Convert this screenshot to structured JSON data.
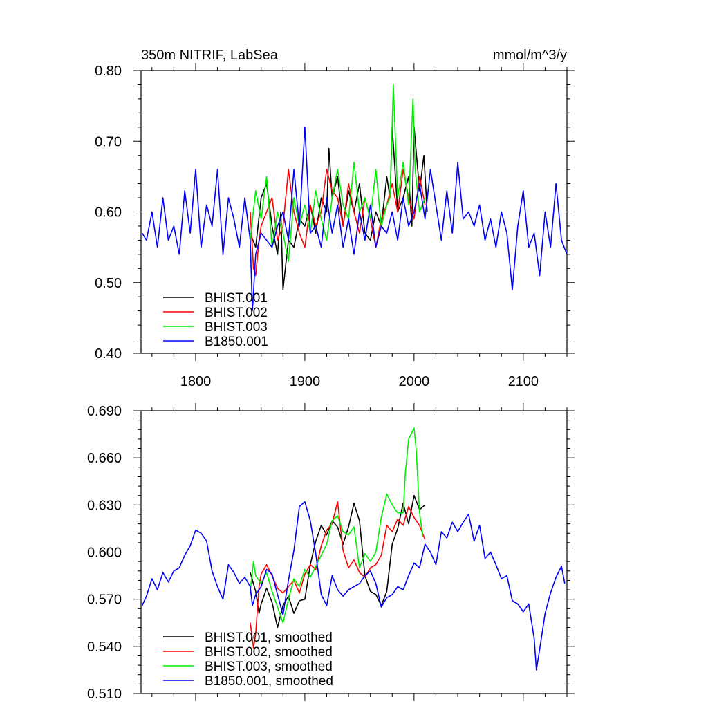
{
  "colors": {
    "BHIST.001": "#000000",
    "BHIST.002": "#ff0000",
    "BHIST.003": "#00ee00",
    "B1850.001": "#0000ff"
  },
  "chart_data": [
    {
      "type": "line",
      "title": "350m NITRIF, LabSea",
      "units_label": "mmol/m^3/y",
      "xlim": [
        1750,
        2140
      ],
      "ylim": [
        0.4,
        0.8
      ],
      "xticks": [
        1800,
        1900,
        2000,
        2100
      ],
      "xtick_labels": [
        "1800",
        "1900",
        "2000",
        "2100"
      ],
      "yticks": [
        0.4,
        0.5,
        0.6,
        0.7,
        0.8
      ],
      "ytick_labels": [
        "0.40",
        "0.50",
        "0.60",
        "0.70",
        "0.80"
      ],
      "legend": "bottom-left",
      "series": [
        {
          "name": "BHIST.001",
          "label": "BHIST.001",
          "x": [
            1850,
            1855,
            1860,
            1865,
            1870,
            1875,
            1878,
            1880,
            1885,
            1890,
            1895,
            1900,
            1905,
            1910,
            1915,
            1920,
            1922,
            1925,
            1930,
            1935,
            1940,
            1945,
            1950,
            1955,
            1960,
            1965,
            1970,
            1975,
            1978,
            1980,
            1985,
            1990,
            1995,
            1998,
            2000,
            2005,
            2009,
            2012
          ],
          "y": [
            0.57,
            0.55,
            0.62,
            0.64,
            0.58,
            0.54,
            0.6,
            0.49,
            0.56,
            0.55,
            0.59,
            0.58,
            0.61,
            0.57,
            0.62,
            0.6,
            0.69,
            0.62,
            0.65,
            0.58,
            0.63,
            0.6,
            0.64,
            0.57,
            0.56,
            0.6,
            0.58,
            0.65,
            0.62,
            0.72,
            0.6,
            0.62,
            0.65,
            0.58,
            0.72,
            0.63,
            0.68,
            0.6
          ]
        },
        {
          "name": "BHIST.002",
          "label": "BHIST.002",
          "x": [
            1850,
            1853,
            1855,
            1858,
            1860,
            1865,
            1870,
            1875,
            1880,
            1885,
            1890,
            1895,
            1900,
            1905,
            1910,
            1915,
            1920,
            1925,
            1930,
            1935,
            1940,
            1945,
            1950,
            1955,
            1960,
            1965,
            1970,
            1975,
            1980,
            1985,
            1990,
            1995,
            2000,
            2005,
            2010
          ],
          "y": [
            0.6,
            0.52,
            0.51,
            0.56,
            0.58,
            0.6,
            0.62,
            0.56,
            0.58,
            0.66,
            0.6,
            0.57,
            0.55,
            0.61,
            0.58,
            0.6,
            0.66,
            0.63,
            0.62,
            0.58,
            0.64,
            0.6,
            0.57,
            0.62,
            0.59,
            0.55,
            0.59,
            0.61,
            0.64,
            0.6,
            0.66,
            0.62,
            0.59,
            0.65,
            0.61
          ]
        },
        {
          "name": "BHIST.003",
          "label": "BHIST.003",
          "x": [
            1850,
            1855,
            1860,
            1865,
            1870,
            1875,
            1880,
            1885,
            1890,
            1895,
            1900,
            1905,
            1910,
            1915,
            1920,
            1925,
            1930,
            1935,
            1940,
            1945,
            1950,
            1955,
            1960,
            1965,
            1970,
            1975,
            1978,
            1981,
            1985,
            1990,
            1995,
            1999,
            2001,
            2005,
            2010
          ],
          "y": [
            0.56,
            0.63,
            0.59,
            0.65,
            0.55,
            0.6,
            0.57,
            0.53,
            0.62,
            0.58,
            0.61,
            0.57,
            0.63,
            0.59,
            0.56,
            0.62,
            0.66,
            0.61,
            0.59,
            0.67,
            0.6,
            0.62,
            0.59,
            0.66,
            0.58,
            0.61,
            0.62,
            0.78,
            0.62,
            0.67,
            0.61,
            0.76,
            0.66,
            0.6,
            0.62
          ]
        },
        {
          "name": "B1850.001",
          "label": "B1850.001",
          "x": [
            1751,
            1755,
            1760,
            1765,
            1770,
            1775,
            1780,
            1785,
            1790,
            1795,
            1800,
            1805,
            1810,
            1815,
            1820,
            1825,
            1830,
            1835,
            1840,
            1845,
            1850,
            1852,
            1855,
            1860,
            1865,
            1870,
            1875,
            1880,
            1885,
            1890,
            1895,
            1900,
            1905,
            1910,
            1915,
            1920,
            1925,
            1930,
            1935,
            1940,
            1945,
            1950,
            1955,
            1960,
            1965,
            1970,
            1975,
            1980,
            1985,
            1990,
            1995,
            2000,
            2005,
            2010,
            2015,
            2020,
            2025,
            2030,
            2035,
            2040,
            2045,
            2050,
            2055,
            2060,
            2065,
            2070,
            2075,
            2080,
            2085,
            2090,
            2095,
            2100,
            2105,
            2110,
            2115,
            2120,
            2125,
            2130,
            2135,
            2140
          ],
          "y": [
            0.57,
            0.56,
            0.6,
            0.55,
            0.62,
            0.56,
            0.58,
            0.54,
            0.63,
            0.57,
            0.66,
            0.55,
            0.61,
            0.58,
            0.66,
            0.54,
            0.62,
            0.59,
            0.55,
            0.62,
            0.56,
            0.46,
            0.54,
            0.57,
            0.56,
            0.55,
            0.58,
            0.6,
            0.56,
            0.66,
            0.58,
            0.72,
            0.57,
            0.58,
            0.55,
            0.62,
            0.57,
            0.61,
            0.55,
            0.59,
            0.54,
            0.6,
            0.56,
            0.61,
            0.55,
            0.58,
            0.57,
            0.6,
            0.56,
            0.62,
            0.58,
            0.6,
            0.64,
            0.59,
            0.66,
            0.61,
            0.56,
            0.63,
            0.57,
            0.67,
            0.59,
            0.6,
            0.58,
            0.61,
            0.56,
            0.59,
            0.55,
            0.6,
            0.57,
            0.49,
            0.58,
            0.63,
            0.55,
            0.57,
            0.51,
            0.6,
            0.55,
            0.64,
            0.56,
            0.54
          ]
        }
      ]
    },
    {
      "type": "line",
      "xlim": [
        1750,
        2140
      ],
      "ylim": [
        0.51,
        0.69
      ],
      "xticks": [
        1800,
        1900,
        2000,
        2100
      ],
      "yticks": [
        0.51,
        0.54,
        0.57,
        0.6,
        0.63,
        0.66,
        0.69
      ],
      "ytick_labels": [
        "0.510",
        "0.540",
        "0.570",
        "0.600",
        "0.630",
        "0.660",
        "0.690"
      ],
      "legend": "bottom-left",
      "series": [
        {
          "name": "BHIST.001",
          "label": "BHIST.001, smoothed",
          "x": [
            1850,
            1855,
            1858,
            1860,
            1865,
            1870,
            1875,
            1880,
            1885,
            1890,
            1895,
            1900,
            1905,
            1910,
            1915,
            1920,
            1925,
            1930,
            1935,
            1940,
            1945,
            1950,
            1955,
            1960,
            1965,
            1970,
            1975,
            1980,
            1985,
            1990,
            1995,
            2000,
            2005,
            2010
          ],
          "y": [
            0.587,
            0.575,
            0.561,
            0.567,
            0.577,
            0.568,
            0.552,
            0.566,
            0.572,
            0.561,
            0.569,
            0.57,
            0.592,
            0.607,
            0.617,
            0.611,
            0.62,
            0.616,
            0.605,
            0.616,
            0.631,
            0.62,
            0.585,
            0.575,
            0.573,
            0.566,
            0.575,
            0.605,
            0.615,
            0.631,
            0.618,
            0.636,
            0.627,
            0.63
          ]
        },
        {
          "name": "BHIST.002",
          "label": "BHIST.002, smoothed",
          "x": [
            1850,
            1853,
            1855,
            1858,
            1860,
            1865,
            1870,
            1875,
            1880,
            1885,
            1890,
            1895,
            1900,
            1905,
            1910,
            1915,
            1920,
            1925,
            1930,
            1935,
            1940,
            1945,
            1950,
            1955,
            1960,
            1965,
            1970,
            1975,
            1980,
            1985,
            1990,
            1995,
            2000,
            2005,
            2010
          ],
          "y": [
            0.555,
            0.539,
            0.548,
            0.578,
            0.586,
            0.592,
            0.585,
            0.577,
            0.574,
            0.578,
            0.582,
            0.574,
            0.586,
            0.592,
            0.589,
            0.604,
            0.614,
            0.618,
            0.632,
            0.601,
            0.59,
            0.595,
            0.587,
            0.584,
            0.59,
            0.592,
            0.598,
            0.617,
            0.613,
            0.621,
            0.617,
            0.629,
            0.622,
            0.617,
            0.608
          ]
        },
        {
          "name": "BHIST.003",
          "label": "BHIST.003, smoothed",
          "x": [
            1850,
            1853,
            1855,
            1860,
            1865,
            1870,
            1875,
            1880,
            1885,
            1890,
            1895,
            1900,
            1905,
            1910,
            1915,
            1920,
            1925,
            1930,
            1935,
            1940,
            1945,
            1950,
            1955,
            1960,
            1965,
            1970,
            1975,
            1980,
            1985,
            1990,
            1992,
            1995,
            1998,
            2000,
            2002,
            2005,
            2008
          ],
          "y": [
            0.575,
            0.594,
            0.585,
            0.58,
            0.587,
            0.575,
            0.565,
            0.555,
            0.57,
            0.583,
            0.578,
            0.589,
            0.584,
            0.591,
            0.598,
            0.605,
            0.62,
            0.623,
            0.613,
            0.611,
            0.616,
            0.59,
            0.599,
            0.594,
            0.6,
            0.622,
            0.637,
            0.63,
            0.625,
            0.625,
            0.65,
            0.672,
            0.676,
            0.679,
            0.665,
            0.625,
            0.61
          ]
        },
        {
          "name": "B1850.001",
          "label": "B1850.001, smoothed",
          "x": [
            1751,
            1755,
            1760,
            1765,
            1770,
            1775,
            1780,
            1785,
            1790,
            1795,
            1800,
            1805,
            1810,
            1815,
            1820,
            1825,
            1830,
            1835,
            1840,
            1845,
            1850,
            1852,
            1855,
            1860,
            1865,
            1870,
            1875,
            1880,
            1885,
            1890,
            1895,
            1900,
            1905,
            1910,
            1915,
            1920,
            1925,
            1930,
            1935,
            1940,
            1945,
            1950,
            1955,
            1960,
            1965,
            1970,
            1975,
            1980,
            1985,
            1990,
            1995,
            2000,
            2005,
            2010,
            2015,
            2020,
            2025,
            2030,
            2035,
            2040,
            2045,
            2050,
            2055,
            2060,
            2065,
            2070,
            2075,
            2080,
            2085,
            2090,
            2095,
            2100,
            2105,
            2110,
            2112,
            2115,
            2120,
            2125,
            2130,
            2135,
            2138
          ],
          "y": [
            0.566,
            0.572,
            0.583,
            0.576,
            0.587,
            0.581,
            0.588,
            0.59,
            0.598,
            0.604,
            0.614,
            0.612,
            0.607,
            0.588,
            0.578,
            0.57,
            0.592,
            0.587,
            0.58,
            0.584,
            0.578,
            0.566,
            0.573,
            0.578,
            0.589,
            0.586,
            0.573,
            0.56,
            0.582,
            0.601,
            0.629,
            0.632,
            0.62,
            0.599,
            0.573,
            0.566,
            0.585,
            0.576,
            0.572,
            0.576,
            0.578,
            0.58,
            0.585,
            0.588,
            0.58,
            0.565,
            0.571,
            0.573,
            0.578,
            0.576,
            0.585,
            0.593,
            0.59,
            0.605,
            0.6,
            0.592,
            0.613,
            0.609,
            0.619,
            0.613,
            0.619,
            0.624,
            0.607,
            0.617,
            0.596,
            0.6,
            0.592,
            0.583,
            0.585,
            0.569,
            0.567,
            0.562,
            0.567,
            0.545,
            0.525,
            0.538,
            0.561,
            0.574,
            0.584,
            0.591,
            0.58
          ]
        }
      ]
    }
  ]
}
